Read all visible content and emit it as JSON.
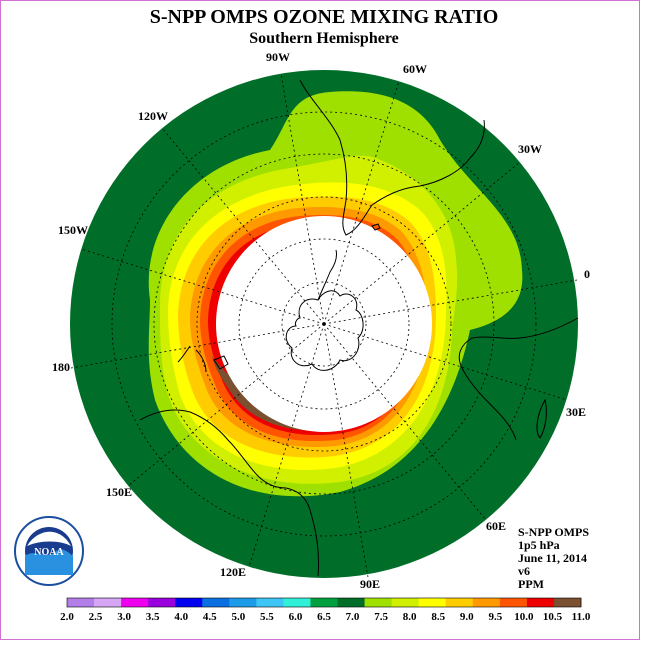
{
  "map": {
    "title": "S-NPP OMPS OZONE MIXING RATIO",
    "subtitle": "Southern Hemisphere",
    "longitude_labels": [
      "90W",
      "60W",
      "30W",
      "0",
      "30E",
      "60E",
      "90E",
      "120E",
      "150E",
      "180",
      "150W",
      "120W"
    ],
    "info": {
      "instrument": "S-NPP OMPS",
      "pressure": "1p5 hPa",
      "date": "June 11, 2014",
      "version": "v6",
      "units": "PPM"
    },
    "logo_text": "NOAA",
    "colorbar": {
      "labels": [
        "2.0",
        "2.5",
        "3.0",
        "3.5",
        "4.0",
        "4.5",
        "5.0",
        "5.5",
        "6.0",
        "6.5",
        "7.0",
        "7.5",
        "8.0",
        "8.5",
        "9.0",
        "9.5",
        "10.0",
        "10.5",
        "11.0"
      ],
      "colors": [
        "#b27fe8",
        "#d6a6f5",
        "#ee00ee",
        "#9900dd",
        "#0000ee",
        "#0a6fe0",
        "#1c9be8",
        "#3cc5f5",
        "#30f0d8",
        "#00a040",
        "#006e28",
        "#a0e000",
        "#d0f000",
        "#ffff00",
        "#ffcc00",
        "#ff9900",
        "#ff5500",
        "#ee0000",
        "#7a5030"
      ]
    }
  }
}
